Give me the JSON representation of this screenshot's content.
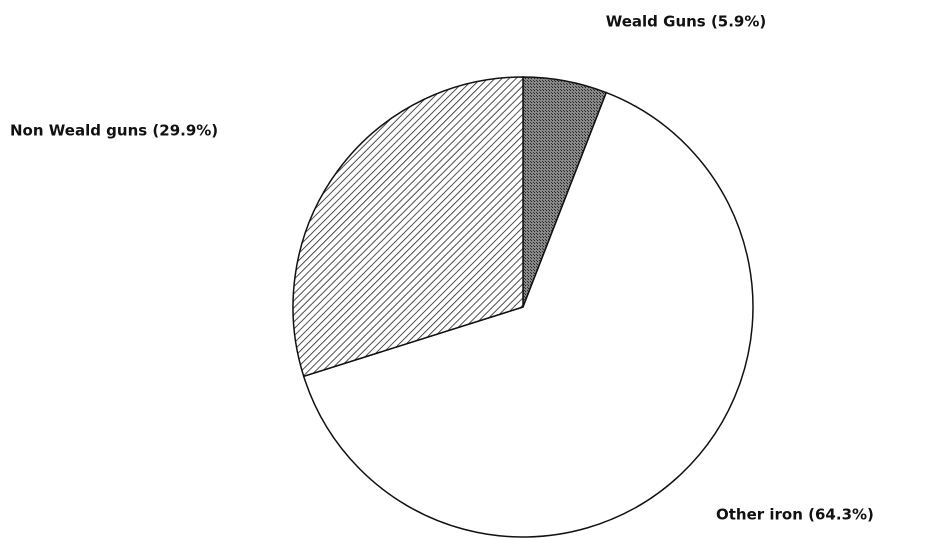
{
  "chart_data": {
    "type": "pie",
    "values": [
      5.9,
      64.3,
      29.9
    ],
    "value_labels": [
      "Weald Guns (5.9%)",
      "Other iron (64.3%)",
      "Non Weald guns (29.9%)"
    ]
  }
}
